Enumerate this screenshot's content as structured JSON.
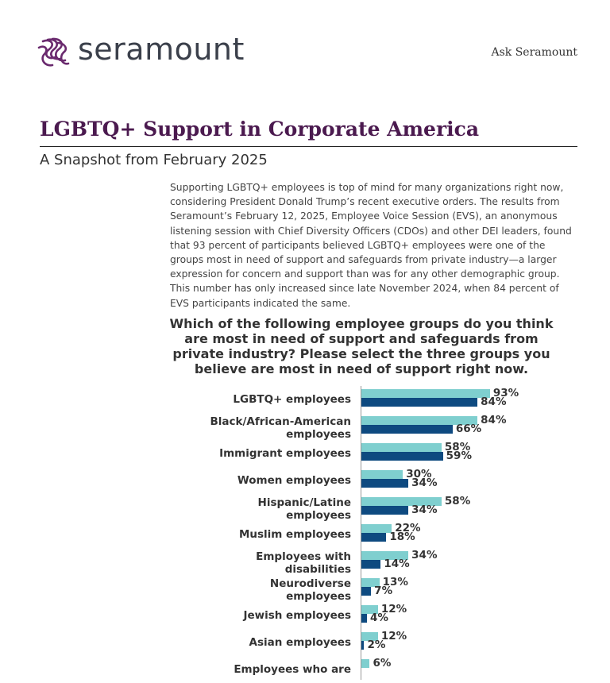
{
  "header": {
    "brand": "seramount",
    "link": "Ask Seramount"
  },
  "article": {
    "title": "LGBTQ+ Support in Corporate America",
    "subtitle": "A Snapshot from February 2025",
    "paragraph": "Supporting LGBTQ+ employees is top of mind for many organizations right now, considering President Donald Trump’s recent executive orders. The results from Seramount’s February 12, 2025, Employee Voice Session (EVS), an anonymous listening session with Chief Diversity Officers (CDOs) and other DEI leaders, found that 93 percent of participants believed LGBTQ+ employees were one of the groups most in need of support and safeguards from private industry—a larger expression for concern and support than was for any other demographic group. This number has only increased since late November 2024, when 84 percent of EVS participants indicated the same."
  },
  "chart_data": {
    "type": "bar",
    "orientation": "horizontal",
    "title": "Which of the following employee groups do you think are most in need of support and safeguards from private industry? Please select the three groups you believe are most in need of support right now.",
    "categories": [
      "LGBTQ+ employees",
      "Black/African-American\nemployees",
      "Immigrant employees",
      "Women employees",
      "Hispanic/Latine\nemployees",
      "Muslim employees",
      "Employees with\ndisabilities",
      "Neurodiverse\nemployees",
      "Jewish employees",
      "Asian employees",
      "Employees who are"
    ],
    "series": [
      {
        "color": "#7fcfcf",
        "values": [
          93,
          84,
          58,
          30,
          58,
          22,
          34,
          13,
          12,
          12,
          6
        ],
        "value_labels": [
          "93%",
          "84%",
          "58%",
          "30%",
          "58%",
          "22%",
          "34%",
          "13%",
          "12%",
          "12%",
          "6%"
        ]
      },
      {
        "color": "#0e4a80",
        "values": [
          84,
          66,
          59,
          34,
          34,
          18,
          14,
          7,
          4,
          2,
          null
        ],
        "value_labels": [
          "84%",
          "66%",
          "59%",
          "34%",
          "34%",
          "18%",
          "14%",
          "7%",
          "4%",
          "2%",
          null
        ]
      }
    ]
  }
}
